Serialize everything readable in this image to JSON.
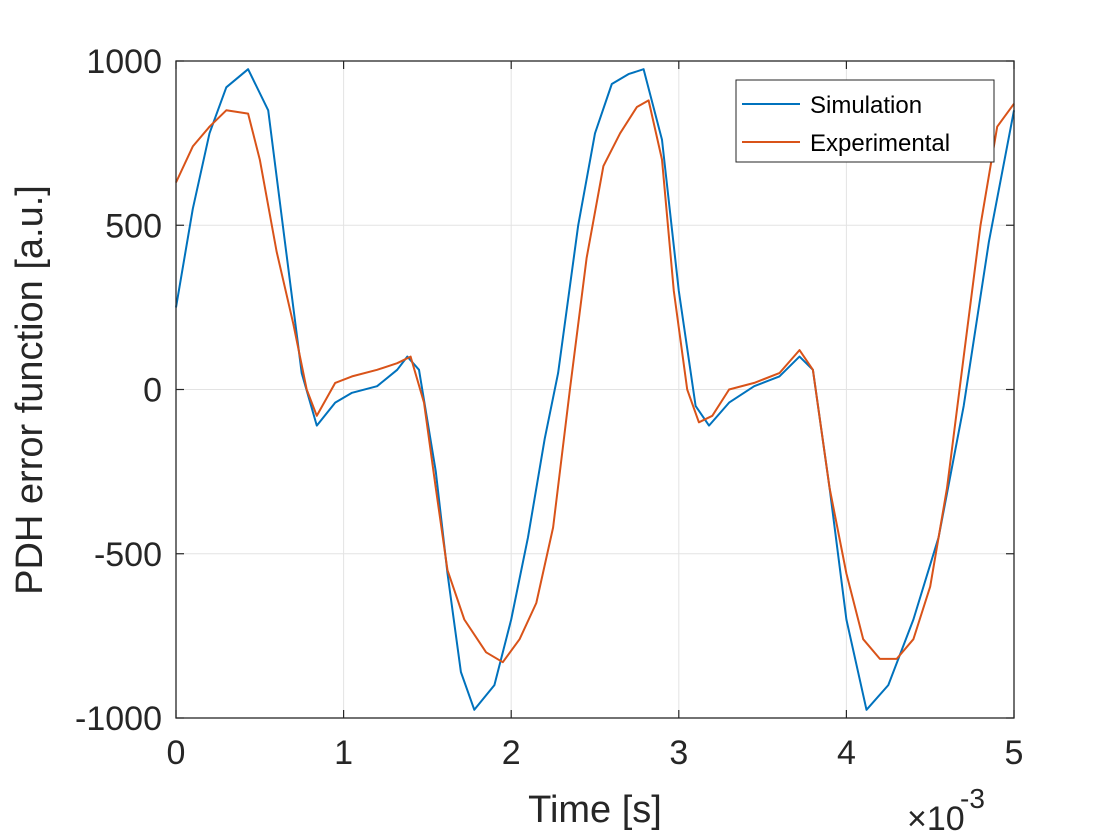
{
  "chart_data": {
    "type": "line",
    "title": "",
    "xlabel": "Time [s]",
    "ylabel": "PDH error function [a.u.]",
    "x_exponent_label": {
      "times": "×10",
      "power": "-3"
    },
    "xlim": [
      0,
      5
    ],
    "ylim": [
      -1000,
      1000
    ],
    "x_ticks": [
      0,
      1,
      2,
      3,
      4,
      5
    ],
    "x_tick_labels": [
      "0",
      "1",
      "2",
      "3",
      "4",
      "5"
    ],
    "y_ticks": [
      -1000,
      -500,
      0,
      500,
      1000
    ],
    "y_tick_labels": [
      "-1000",
      "-500",
      "0",
      "500",
      "1000"
    ],
    "grid": true,
    "legend_position": "top-right",
    "series": [
      {
        "name": "Simulation",
        "color": "#0072BD",
        "x": [
          0,
          0.1,
          0.2,
          0.3,
          0.43,
          0.55,
          0.65,
          0.75,
          0.84,
          0.95,
          1.05,
          1.2,
          1.32,
          1.38,
          1.45,
          1.55,
          1.62,
          1.7,
          1.78,
          1.9,
          2.0,
          2.1,
          2.2,
          2.28,
          2.4,
          2.5,
          2.6,
          2.7,
          2.79,
          2.9,
          3.0,
          3.1,
          3.18,
          3.3,
          3.45,
          3.6,
          3.72,
          3.8,
          3.9,
          4.0,
          4.12,
          4.25,
          4.4,
          4.55,
          4.7,
          4.85,
          5.0
        ],
        "y": [
          250,
          550,
          780,
          920,
          975,
          850,
          450,
          50,
          -110,
          -40,
          -10,
          10,
          60,
          100,
          60,
          -250,
          -560,
          -860,
          -975,
          -900,
          -700,
          -450,
          -150,
          50,
          500,
          780,
          930,
          960,
          975,
          760,
          300,
          -50,
          -110,
          -40,
          10,
          40,
          100,
          60,
          -300,
          -700,
          -975,
          -900,
          -700,
          -450,
          -50,
          450,
          850
        ]
      },
      {
        "name": "Experimental",
        "color": "#D95319",
        "x": [
          0,
          0.1,
          0.2,
          0.3,
          0.43,
          0.5,
          0.6,
          0.7,
          0.78,
          0.84,
          0.95,
          1.05,
          1.2,
          1.32,
          1.4,
          1.48,
          1.55,
          1.62,
          1.72,
          1.85,
          1.95,
          2.05,
          2.15,
          2.25,
          2.35,
          2.45,
          2.55,
          2.65,
          2.75,
          2.82,
          2.9,
          2.97,
          3.05,
          3.12,
          3.2,
          3.3,
          3.45,
          3.6,
          3.72,
          3.8,
          3.9,
          4.0,
          4.1,
          4.2,
          4.3,
          4.4,
          4.5,
          4.6,
          4.7,
          4.8,
          4.9,
          5.0
        ],
        "y": [
          630,
          740,
          800,
          850,
          840,
          700,
          420,
          200,
          0,
          -80,
          20,
          40,
          60,
          80,
          100,
          -40,
          -300,
          -550,
          -700,
          -800,
          -830,
          -760,
          -650,
          -420,
          0,
          400,
          680,
          780,
          860,
          880,
          700,
          300,
          0,
          -100,
          -80,
          0,
          20,
          50,
          120,
          60,
          -300,
          -560,
          -760,
          -820,
          -820,
          -760,
          -600,
          -300,
          100,
          500,
          800,
          870
        ]
      }
    ]
  }
}
